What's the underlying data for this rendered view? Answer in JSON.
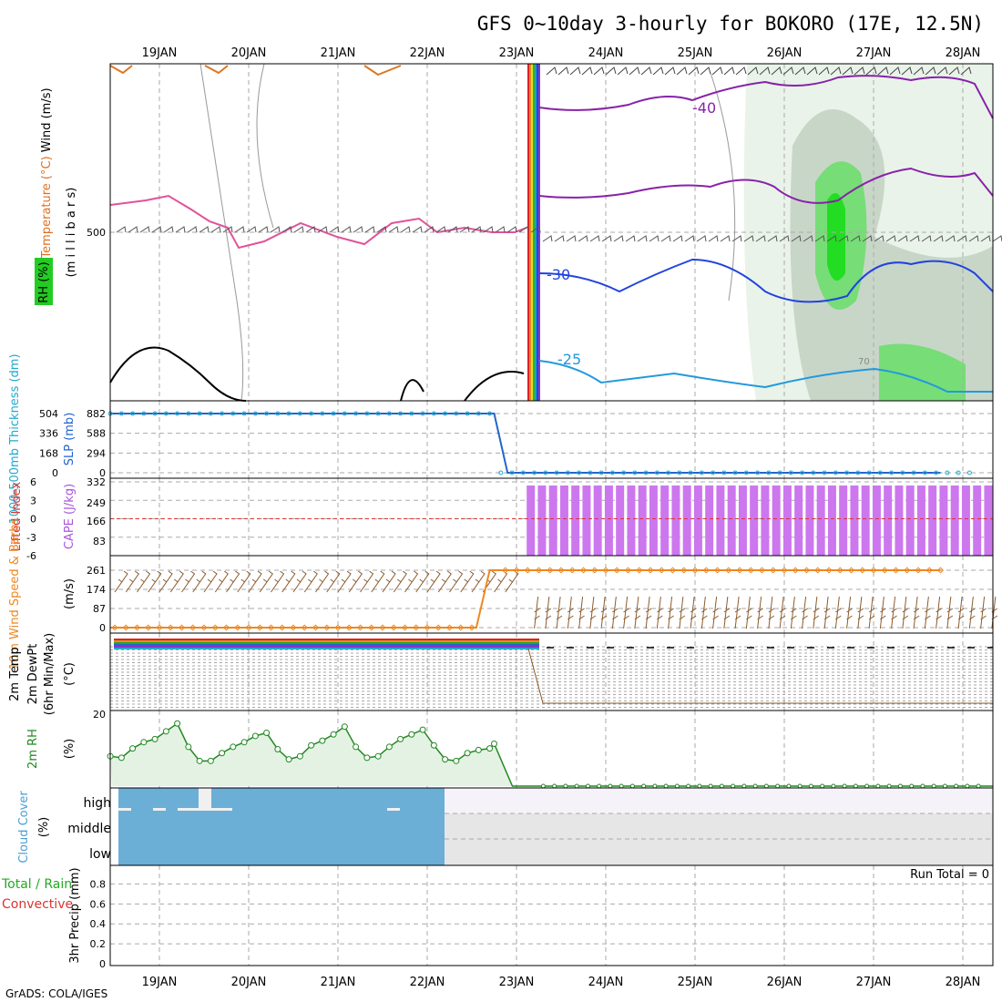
{
  "chart_data": {
    "type": "meteogram",
    "title": "GFS 0~10day 3-hourly for BOKORO (17E, 12.5N)",
    "credit": "GrADS: COLA/IGES",
    "dates": [
      "19JAN",
      "20JAN",
      "21JAN",
      "22JAN",
      "23JAN",
      "24JAN",
      "25JAN",
      "26JAN",
      "27JAN",
      "28JAN"
    ],
    "panels": [
      {
        "id": "upper",
        "type": "contour",
        "ylabels": [
          "(m i l l i b a r s)"
        ],
        "legend": [
          "Temperature (°C)",
          "Wind (m/s)",
          "RH (%)"
        ],
        "colors": {
          "temperature": "#e0529a",
          "wind": "#7a4a8a",
          "rh": "#22cc22"
        },
        "pressure_tick": "500",
        "contour_labels": [
          "-40",
          "-30",
          "-25",
          "70"
        ]
      },
      {
        "id": "thickness-slp",
        "type": "line",
        "ylabels": [
          "1000-500mb Thickness (dm)",
          "SLP (mb)"
        ],
        "left_ticks": [
          "504",
          "336",
          "168",
          "0"
        ],
        "right_ticks": [
          "882",
          "588",
          "294",
          "0"
        ],
        "series": [
          {
            "name": "SLP",
            "x": [
              0,
              4.3,
              4.45,
              9.3
            ],
            "values": [
              882,
              882,
              0,
              0
            ]
          }
        ]
      },
      {
        "id": "cape-li",
        "type": "bar",
        "ylabels": [
          "Lifted Index",
          "CAPE (J/kg)"
        ],
        "left_ticks": [
          "-6",
          "-3",
          "0",
          "3",
          "6"
        ],
        "right_ticks": [
          "332",
          "249",
          "166",
          "83"
        ],
        "bars_start_day": 4.1,
        "bar_value": 320,
        "li_line_value": 0
      },
      {
        "id": "wind10m",
        "type": "line",
        "ylabels": [
          "10m Wind Speed & Barbs",
          "(m/s)"
        ],
        "ticks": [
          "261",
          "174",
          "87",
          "0"
        ],
        "series": [
          {
            "name": "speed",
            "x": [
              0,
              4.1,
              4.25,
              9.3
            ],
            "values": [
              0,
              0,
              261,
              261
            ]
          }
        ]
      },
      {
        "id": "temp2m",
        "type": "line",
        "ylabels": [
          "2m Temp",
          "2m DewPt",
          "(6hr Min/Max)",
          "(°C)"
        ],
        "ticks": [
          "20"
        ]
      },
      {
        "id": "rh2m",
        "type": "area",
        "ylabels": [
          "2m RH",
          "(%)"
        ],
        "x": [
          0,
          0.125,
          0.25,
          0.375,
          0.5,
          0.625,
          0.75,
          0.875,
          1,
          1.125,
          1.25,
          1.375,
          1.5,
          1.625,
          1.75,
          1.875,
          2,
          2.125,
          2.25,
          2.375,
          2.5,
          2.625,
          2.75,
          2.875,
          3,
          3.125,
          3.25,
          3.375,
          3.5,
          3.625,
          3.75,
          3.875,
          4,
          4.125,
          4.25,
          4.3
        ],
        "values": [
          36,
          34,
          46,
          54,
          58,
          68,
          78,
          48,
          30,
          30,
          40,
          48,
          54,
          62,
          66,
          45,
          32,
          36,
          50,
          56,
          64,
          74,
          48,
          34,
          36,
          48,
          58,
          64,
          70,
          50,
          32,
          30,
          40,
          44,
          46,
          52
        ]
      },
      {
        "id": "cloud",
        "type": "area",
        "ylabels": [
          "Cloud Cover",
          "(%)"
        ],
        "levels": [
          "high",
          "middle",
          "low"
        ],
        "covered_until_day": 4.05
      },
      {
        "id": "precip",
        "type": "line",
        "ylabels": [
          "Total / Rain",
          "Convective",
          "3hr Precip (mm)"
        ],
        "ticks": [
          "0.8",
          "0.6",
          "0.4",
          "0.2",
          "0"
        ],
        "run_total": "Run Total = 0"
      }
    ]
  }
}
